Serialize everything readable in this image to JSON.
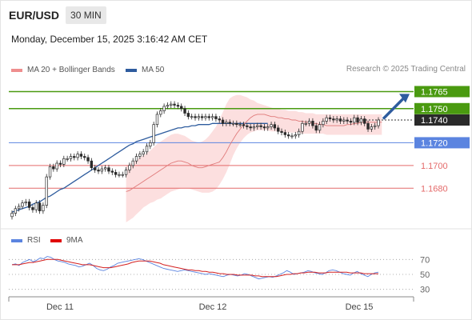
{
  "header": {
    "pair": "EUR/USD",
    "timeframe": "30 MIN",
    "datetime": "Monday, December 15, 2025 3:16:42 AM CET"
  },
  "legend": {
    "ma20": "MA 20 + Bollinger Bands",
    "ma50": "MA 50",
    "rsi": "RSI",
    "rsi_ma": "9MA"
  },
  "credit": "Research © 2025 Trading Central",
  "colors": {
    "green": "#4a9a10",
    "blue": "#5b84e0",
    "red": "#e46a6a",
    "ma50": "#2e5c9e",
    "ma20": "#e88a8a",
    "band": "#fcd9d9",
    "candle": "#2a2a2a"
  },
  "chart_data": [
    {
      "type": "candlestick",
      "ylim": [
        1.1645,
        1.1778
      ],
      "x_ticks": [
        "Dec 11",
        "Dec 12",
        "Dec 15"
      ],
      "levels": [
        {
          "value": 1.1765,
          "label": "1.1765",
          "style": "resistance"
        },
        {
          "value": 1.175,
          "label": "1.1750",
          "style": "resistance"
        },
        {
          "value": 1.174,
          "label": "1.1740",
          "style": "current"
        },
        {
          "value": 1.172,
          "label": "1.1720",
          "style": "pivot"
        },
        {
          "value": 1.17,
          "label": "1.1700",
          "style": "support"
        },
        {
          "value": 1.168,
          "label": "1.1680",
          "style": "support"
        }
      ],
      "close": [
        1.1658,
        1.1662,
        1.1664,
        1.1667,
        1.1668,
        1.1663,
        1.1661,
        1.1667,
        1.166,
        1.1665,
        1.169,
        1.1699,
        1.1697,
        1.1702,
        1.1701,
        1.1706,
        1.1706,
        1.1708,
        1.1707,
        1.171,
        1.1708,
        1.1707,
        1.1704,
        1.1698,
        1.1696,
        1.1695,
        1.1697,
        1.1698,
        1.1695,
        1.1694,
        1.1692,
        1.1692,
        1.1692,
        1.1696,
        1.17,
        1.1704,
        1.1708,
        1.171,
        1.1712,
        1.1717,
        1.172,
        1.1736,
        1.1745,
        1.1748,
        1.1752,
        1.1753,
        1.1754,
        1.1753,
        1.1752,
        1.175,
        1.1746,
        1.1743,
        1.1743,
        1.1742,
        1.1743,
        1.1742,
        1.1743,
        1.1742,
        1.1743,
        1.1741,
        1.174,
        1.1737,
        1.1738,
        1.1737,
        1.1737,
        1.1736,
        1.1736,
        1.1735,
        1.1734,
        1.1733,
        1.1734,
        1.1735,
        1.1734,
        1.1733,
        1.1734,
        1.1736,
        1.1733,
        1.173,
        1.1729,
        1.1727,
        1.1726,
        1.1726,
        1.1727,
        1.173,
        1.1737,
        1.1737,
        1.1739,
        1.1735,
        1.1731,
        1.1736,
        1.1739,
        1.1742,
        1.1741,
        1.174,
        1.1741,
        1.1739,
        1.174,
        1.1739,
        1.1738,
        1.1742,
        1.1738,
        1.1741,
        1.1737,
        1.1732,
        1.1734,
        1.1735,
        1.174
      ],
      "ma20": [
        1.1677,
        1.1678,
        1.168,
        1.1682,
        1.1684,
        1.1686,
        1.1688,
        1.169,
        1.1692,
        1.1694,
        1.1696,
        1.1698,
        1.17,
        1.1702,
        1.1703,
        1.1704,
        1.1704,
        1.1703,
        1.1702,
        1.17,
        1.1699,
        1.1698,
        1.1698,
        1.1699,
        1.17,
        1.1701,
        1.1702,
        1.1703,
        1.1707,
        1.1712,
        1.1718,
        1.1723,
        1.1728,
        1.1732,
        1.1736,
        1.1739,
        1.1742,
        1.1744,
        1.1745,
        1.1745,
        1.1745,
        1.1744,
        1.1743,
        1.1743,
        1.1742,
        1.1742,
        1.1741,
        1.1741,
        1.174,
        1.174,
        1.1739,
        1.1739,
        1.1738,
        1.1738,
        1.1737,
        1.1737,
        1.1736,
        1.1736,
        1.1735,
        1.1735,
        1.1735,
        1.1735,
        1.1735,
        1.1735,
        1.1736,
        1.1736,
        1.1737,
        1.1737,
        1.1738,
        1.1738,
        1.1738,
        1.1738,
        1.1738,
        1.1738,
        1.1738
      ],
      "ma20_start_index": 33,
      "bb_upper": [
        1.17,
        1.1701,
        1.1703,
        1.1705,
        1.1707,
        1.1709,
        1.1711,
        1.1713,
        1.1716,
        1.1719,
        1.1721,
        1.1723,
        1.1725,
        1.1727,
        1.1728,
        1.1728,
        1.1727,
        1.1726,
        1.1724,
        1.1722,
        1.1721,
        1.172,
        1.1721,
        1.1723,
        1.1726,
        1.173,
        1.1734,
        1.174,
        1.1747,
        1.1754,
        1.1759,
        1.1761,
        1.1762,
        1.1762,
        1.1761,
        1.176,
        1.1758,
        1.1757,
        1.1755,
        1.1754,
        1.1753,
        1.1752,
        1.1751,
        1.175,
        1.175,
        1.1749,
        1.1749,
        1.1748,
        1.1748,
        1.1748,
        1.1747,
        1.1747,
        1.1746,
        1.1746,
        1.1746,
        1.1745,
        1.1745,
        1.1745,
        1.1745,
        1.1745,
        1.1745,
        1.1745,
        1.1745,
        1.1745,
        1.1745,
        1.1745,
        1.1745,
        1.1745,
        1.1745,
        1.1745,
        1.1745,
        1.1745,
        1.1745,
        1.1745,
        1.1745
      ],
      "bb_lower": [
        1.165,
        1.1652,
        1.1654,
        1.1657,
        1.166,
        1.1663,
        1.1665,
        1.1667,
        1.1668,
        1.167,
        1.1671,
        1.1673,
        1.1675,
        1.1677,
        1.1678,
        1.1679,
        1.168,
        1.168,
        1.168,
        1.1679,
        1.1678,
        1.1677,
        1.1676,
        1.1676,
        1.1676,
        1.1677,
        1.1679,
        1.1683,
        1.1688,
        1.1694,
        1.1701,
        1.1709,
        1.1715,
        1.172,
        1.1724,
        1.1727,
        1.1729,
        1.173,
        1.1731,
        1.1731,
        1.1731,
        1.1731,
        1.173,
        1.173,
        1.173,
        1.173,
        1.1729,
        1.1729,
        1.1729,
        1.1729,
        1.1729,
        1.1728,
        1.1728,
        1.1728,
        1.1728,
        1.1728,
        1.1728,
        1.1728,
        1.1727,
        1.1727,
        1.1727,
        1.1727,
        1.1727,
        1.1727,
        1.1727,
        1.1727,
        1.1727,
        1.1727,
        1.1727,
        1.1727,
        1.1727,
        1.1727,
        1.1727,
        1.1727,
        1.1727
      ],
      "ma50": [
        1.1659,
        1.166,
        1.1661,
        1.1662,
        1.1663,
        1.1664,
        1.1666,
        1.1667,
        1.1668,
        1.167,
        1.1672,
        1.1673,
        1.1675,
        1.1677,
        1.1679,
        1.168,
        1.1682,
        1.1684,
        1.1686,
        1.1688,
        1.169,
        1.1692,
        1.1694,
        1.1696,
        1.1698,
        1.17,
        1.1702,
        1.1704,
        1.1706,
        1.1708,
        1.171,
        1.1712,
        1.1714,
        1.1716,
        1.1718,
        1.1719,
        1.1721,
        1.1722,
        1.1723,
        1.1724,
        1.1725,
        1.1726,
        1.1727,
        1.1728,
        1.1729,
        1.173,
        1.1731,
        1.1732,
        1.1733,
        1.1733,
        1.1734,
        1.1734,
        1.1735,
        1.1735,
        1.1736,
        1.1736,
        1.1736,
        1.1736,
        1.1737,
        1.1737,
        1.1737,
        1.1737,
        1.1737,
        1.1737,
        1.1737,
        1.1737,
        1.1737,
        1.1737,
        1.1737,
        1.1737,
        1.1737,
        1.1737,
        1.1737,
        1.1737,
        1.1737
      ],
      "ma50_start_index": 0
    },
    {
      "type": "line",
      "ylim": [
        20,
        80
      ],
      "y_ticks": [
        70,
        50,
        30
      ],
      "series": [
        {
          "name": "RSI",
          "values": [
            63,
            64,
            62,
            66,
            68,
            70,
            67,
            69,
            72,
            71,
            74,
            73,
            70,
            68,
            67,
            66,
            64,
            63,
            62,
            60,
            61,
            63,
            65,
            62,
            58,
            56,
            55,
            57,
            60,
            62,
            65,
            66,
            67,
            68,
            69,
            70,
            71,
            70,
            68,
            66,
            64,
            62,
            60,
            58,
            57,
            56,
            55,
            54,
            55,
            56,
            55,
            54,
            53,
            52,
            51,
            50,
            51,
            50,
            49,
            48,
            47,
            49,
            50,
            49,
            48,
            49,
            51,
            50,
            48,
            46,
            44,
            45,
            46,
            47,
            46,
            48,
            50,
            52,
            55,
            53,
            50,
            51,
            52,
            53,
            55,
            54,
            52,
            51,
            50,
            52,
            55,
            56,
            55,
            53,
            51,
            50,
            49,
            52,
            54,
            51,
            49,
            47,
            50,
            52,
            53
          ]
        },
        {
          "name": "9MA",
          "values": [
            63,
            63,
            63,
            64,
            65,
            66,
            66,
            67,
            68,
            69,
            70,
            70,
            70,
            70,
            69,
            68,
            67,
            66,
            65,
            64,
            63,
            63,
            63,
            62,
            61,
            60,
            59,
            59,
            59,
            60,
            61,
            62,
            63,
            64,
            66,
            67,
            68,
            68,
            68,
            68,
            67,
            66,
            65,
            63,
            62,
            61,
            60,
            59,
            58,
            57,
            56,
            56,
            55,
            55,
            54,
            54,
            53,
            53,
            52,
            51,
            51,
            50,
            50,
            50,
            49,
            49,
            49,
            49,
            49,
            48,
            48,
            47,
            47,
            47,
            47,
            47,
            48,
            49,
            50,
            50,
            51,
            51,
            52,
            52,
            53,
            53,
            53,
            52,
            52,
            52,
            53,
            53,
            53,
            53,
            53,
            53,
            52,
            52,
            52,
            52,
            51,
            51,
            51,
            51,
            51
          ]
        }
      ]
    }
  ]
}
